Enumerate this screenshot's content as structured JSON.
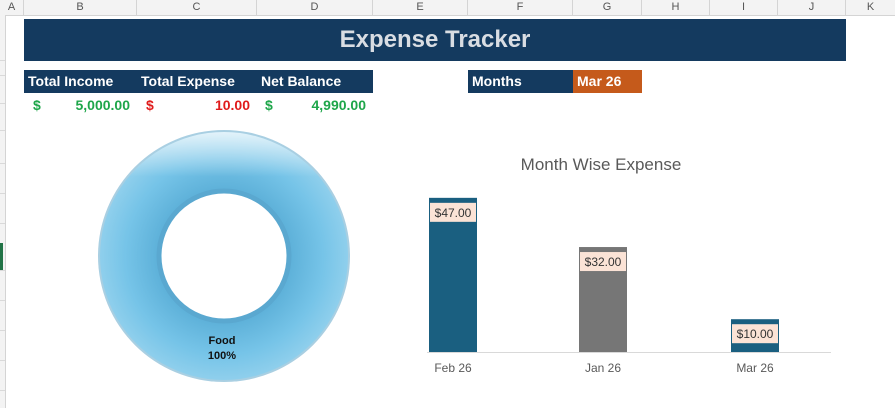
{
  "columns": [
    "A",
    "B",
    "C",
    "D",
    "E",
    "F",
    "G",
    "H",
    "I",
    "J",
    "K"
  ],
  "title": "Expense Tracker",
  "summary": {
    "income": {
      "label": "Total Income",
      "currency": "$",
      "amount": "5,000.00"
    },
    "expense": {
      "label": "Total Expense",
      "currency": "$",
      "amount": "10.00"
    },
    "balance": {
      "label": "Net Balance",
      "currency": "$",
      "amount": "4,990.00"
    }
  },
  "months": {
    "label": "Months",
    "selected": "Mar 26"
  },
  "donut": {
    "category": "Food",
    "percent": "100%",
    "color": "#72c2e6"
  },
  "chart_data": {
    "type": "bar",
    "title": "Month Wise Expense",
    "categories": [
      "Feb 26",
      "Jan 26",
      "Mar 26"
    ],
    "values": [
      47,
      32,
      10
    ],
    "data_labels": [
      "$47.00",
      "$32.00",
      "$10.00"
    ],
    "colors": [
      "#1a5f80",
      "#767676",
      "#1a5f80"
    ],
    "ylim": [
      0,
      50
    ],
    "grid": false,
    "legend": "none"
  }
}
